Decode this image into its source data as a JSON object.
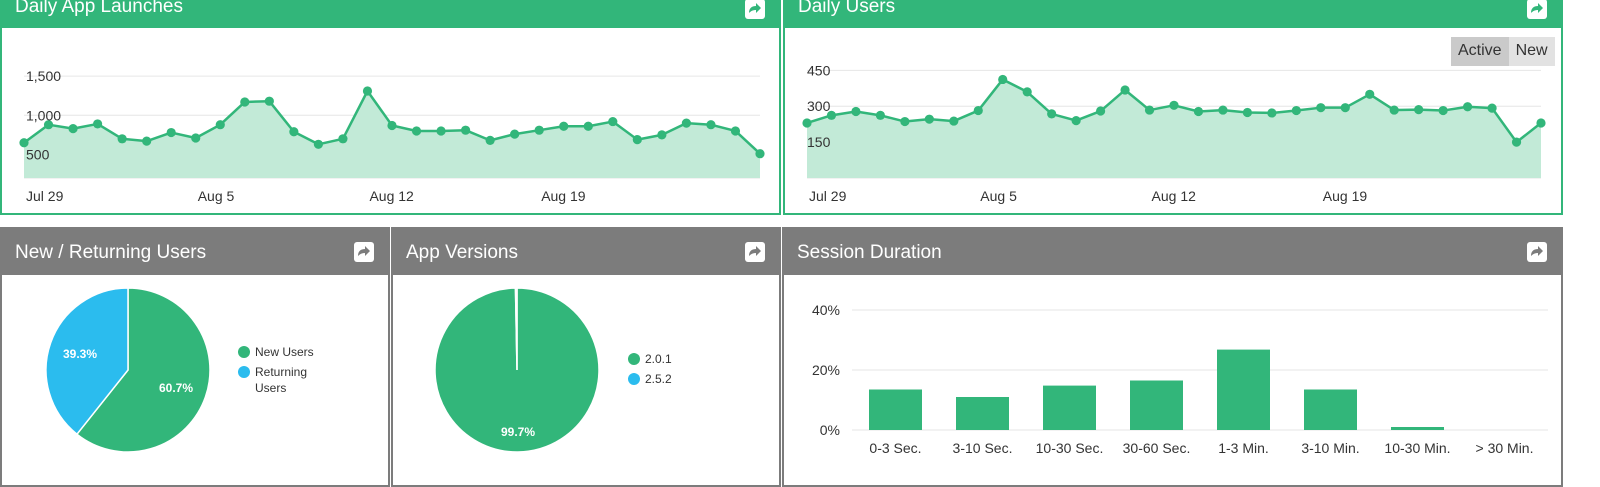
{
  "colors": {
    "accent": "#32b67a",
    "area_fill": "#c2ead7",
    "returning": "#2bbcee",
    "header_gray": "#7c7c7c"
  },
  "icons": {
    "share": "share-icon"
  },
  "panels": {
    "daily_launches": {
      "title": "Daily App Launches"
    },
    "daily_users": {
      "title": "Daily Users",
      "toggle": {
        "active": "Active",
        "new": "New",
        "selected": "Active"
      }
    },
    "new_returning": {
      "title": "New / Returning Users"
    },
    "app_versions": {
      "title": "App Versions"
    },
    "session_duration": {
      "title": "Session Duration"
    }
  },
  "chart_data": [
    {
      "id": "daily_launches",
      "type": "area",
      "y_ticks": [
        {
          "value": 500,
          "label": "500"
        },
        {
          "value": 1000,
          "label": "1,000"
        },
        {
          "value": 1500,
          "label": "1,500"
        }
      ],
      "ylim": [
        200,
        1680
      ],
      "x_labels": [
        {
          "index": 0,
          "label": "Jul 29"
        },
        {
          "index": 7,
          "label": "Aug 5"
        },
        {
          "index": 14,
          "label": "Aug 12"
        },
        {
          "index": 21,
          "label": "Aug 19"
        }
      ],
      "values": [
        650,
        880,
        830,
        890,
        700,
        670,
        780,
        710,
        880,
        1170,
        1180,
        790,
        630,
        700,
        1310,
        870,
        800,
        800,
        810,
        680,
        760,
        810,
        860,
        860,
        920,
        690,
        750,
        900,
        880,
        800,
        510
      ],
      "grid": true
    },
    {
      "id": "daily_users",
      "type": "area",
      "y_ticks": [
        {
          "value": 150,
          "label": "150"
        },
        {
          "value": 300,
          "label": "300"
        },
        {
          "value": 450,
          "label": "450"
        }
      ],
      "ylim": [
        0,
        485
      ],
      "x_labels": [
        {
          "index": 0,
          "label": "Jul 29"
        },
        {
          "index": 7,
          "label": "Aug 5"
        },
        {
          "index": 14,
          "label": "Aug 12"
        },
        {
          "index": 21,
          "label": "Aug 19"
        }
      ],
      "values": [
        230,
        262,
        278,
        262,
        236,
        246,
        238,
        282,
        412,
        360,
        268,
        240,
        280,
        368,
        284,
        304,
        278,
        284,
        274,
        272,
        282,
        294,
        294,
        350,
        284,
        286,
        282,
        298,
        292,
        150,
        230
      ],
      "grid": true
    },
    {
      "id": "new_returning",
      "type": "pie",
      "slices": [
        {
          "label": "New Users",
          "value": 60.7,
          "display": "60.7%",
          "color": "#32b67a"
        },
        {
          "label": "Returning Users",
          "value": 39.3,
          "display": "39.3%",
          "color": "#2bbcee"
        }
      ],
      "legend": "right"
    },
    {
      "id": "app_versions",
      "type": "pie",
      "slices": [
        {
          "label": "2.0.1",
          "value": 99.7,
          "display": "99.7%",
          "color": "#32b67a"
        },
        {
          "label": "2.5.2",
          "value": 0.3,
          "display": "",
          "color": "#2bbcee"
        }
      ],
      "legend": "right"
    },
    {
      "id": "session_duration",
      "type": "bar",
      "categories": [
        "0-3 Sec.",
        "3-10 Sec.",
        "10-30 Sec.",
        "30-60 Sec.",
        "1-3 Min.",
        "3-10 Min.",
        "10-30 Min.",
        "> 30 Min."
      ],
      "values": [
        13.5,
        11,
        14.8,
        16.5,
        26.8,
        13.5,
        1,
        0
      ],
      "y_ticks": [
        {
          "value": 0,
          "label": "0%"
        },
        {
          "value": 20,
          "label": "20%"
        },
        {
          "value": 40,
          "label": "40%"
        }
      ],
      "ylim": [
        0,
        42
      ],
      "grid": true
    }
  ]
}
